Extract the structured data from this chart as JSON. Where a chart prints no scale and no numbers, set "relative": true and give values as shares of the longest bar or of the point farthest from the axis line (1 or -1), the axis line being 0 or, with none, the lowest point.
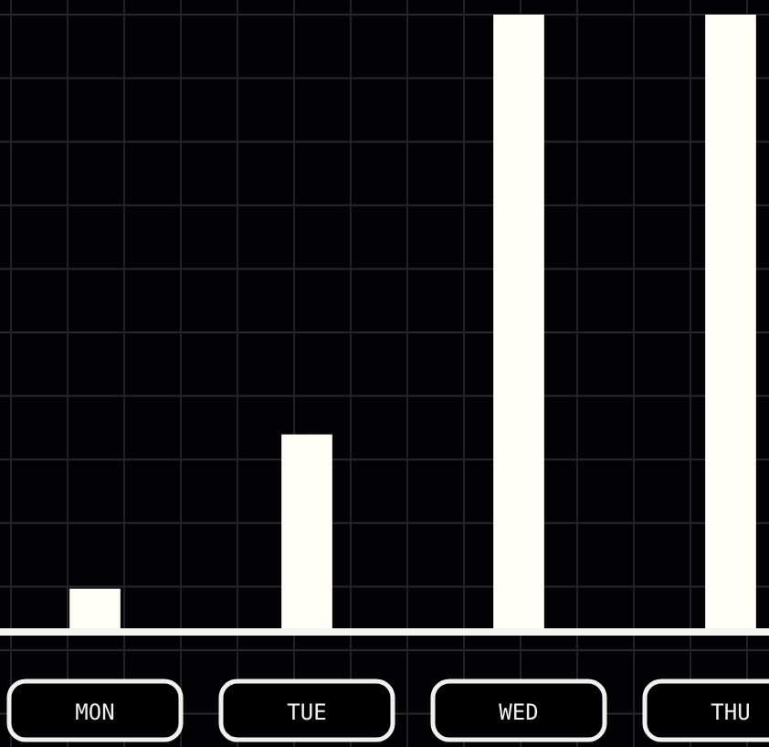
{
  "chart_data": {
    "type": "bar",
    "relative": true,
    "categories": [
      "MON",
      "TUE",
      "WED",
      "THU"
    ],
    "values": [
      0.07,
      0.32,
      1,
      1
    ],
    "color": "#fffdf6",
    "grid": true
  }
}
